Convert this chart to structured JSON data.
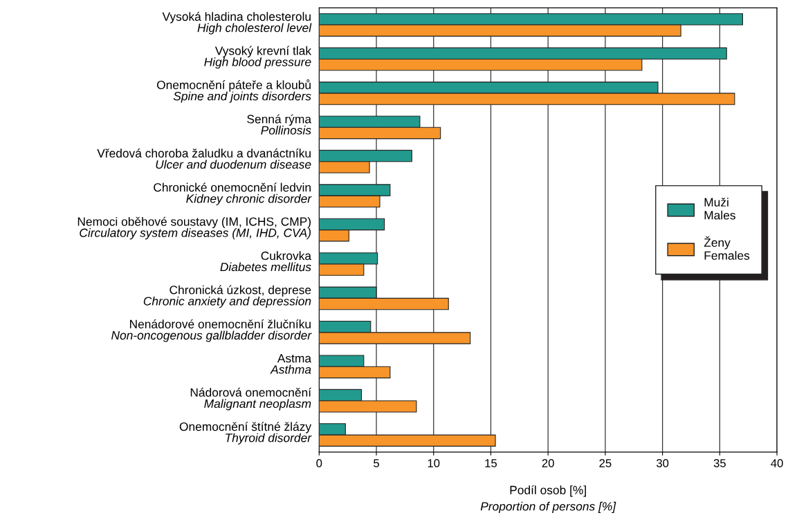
{
  "chart_data": {
    "type": "bar",
    "orientation": "horizontal",
    "categories": [
      "Vysoká hladina cholesterolu\nHigh cholesterol level",
      "Vysoký krevní tlak\nHigh blood pressure",
      "Onemocnění páteře a kloubů\nSpine and joints disorders",
      "Senná rýma\nPollinosis",
      "Vředová choroba žaludku a dvanáctníku\nUlcer and duodenum disease",
      "Chronické onemocnění ledvin\nKidney chronic disorder",
      "Nemoci oběhové soustavy (IM, ICHS, CMP)\nCirculatory system diseases (MI, IHD, CVA)",
      "Cukrovka\nDiabetes mellitus",
      "Chronická úzkost, deprese\nChronic anxiety and depression",
      "Nenádorové onemocnění žlučníku\nNon-oncogenous gallbladder disorder",
      "Astma\nAsthma",
      "Nádorová onemocnění\nMalignant neoplasm",
      "Onemocnění štítné žlázy\nThyroid disorder"
    ],
    "series": [
      {
        "name": "Muži\nMales",
        "color": "#229a8e",
        "values": [
          37.0,
          35.6,
          29.6,
          8.8,
          8.1,
          6.2,
          5.7,
          5.1,
          5.0,
          4.5,
          3.9,
          3.7,
          2.3
        ]
      },
      {
        "name": "Ženy\nFemales",
        "color": "#f7942a",
        "values": [
          31.6,
          28.2,
          36.3,
          10.6,
          4.4,
          5.3,
          2.6,
          3.9,
          11.3,
          13.2,
          6.2,
          8.5,
          15.4
        ]
      }
    ],
    "xlabel": "Podíl osob [%]\nProportion of persons [%]",
    "xlim": [
      0,
      40
    ],
    "xticks": [
      0,
      5,
      10,
      15,
      20,
      25,
      30,
      35,
      40
    ],
    "grid": "x",
    "legend": "right"
  }
}
